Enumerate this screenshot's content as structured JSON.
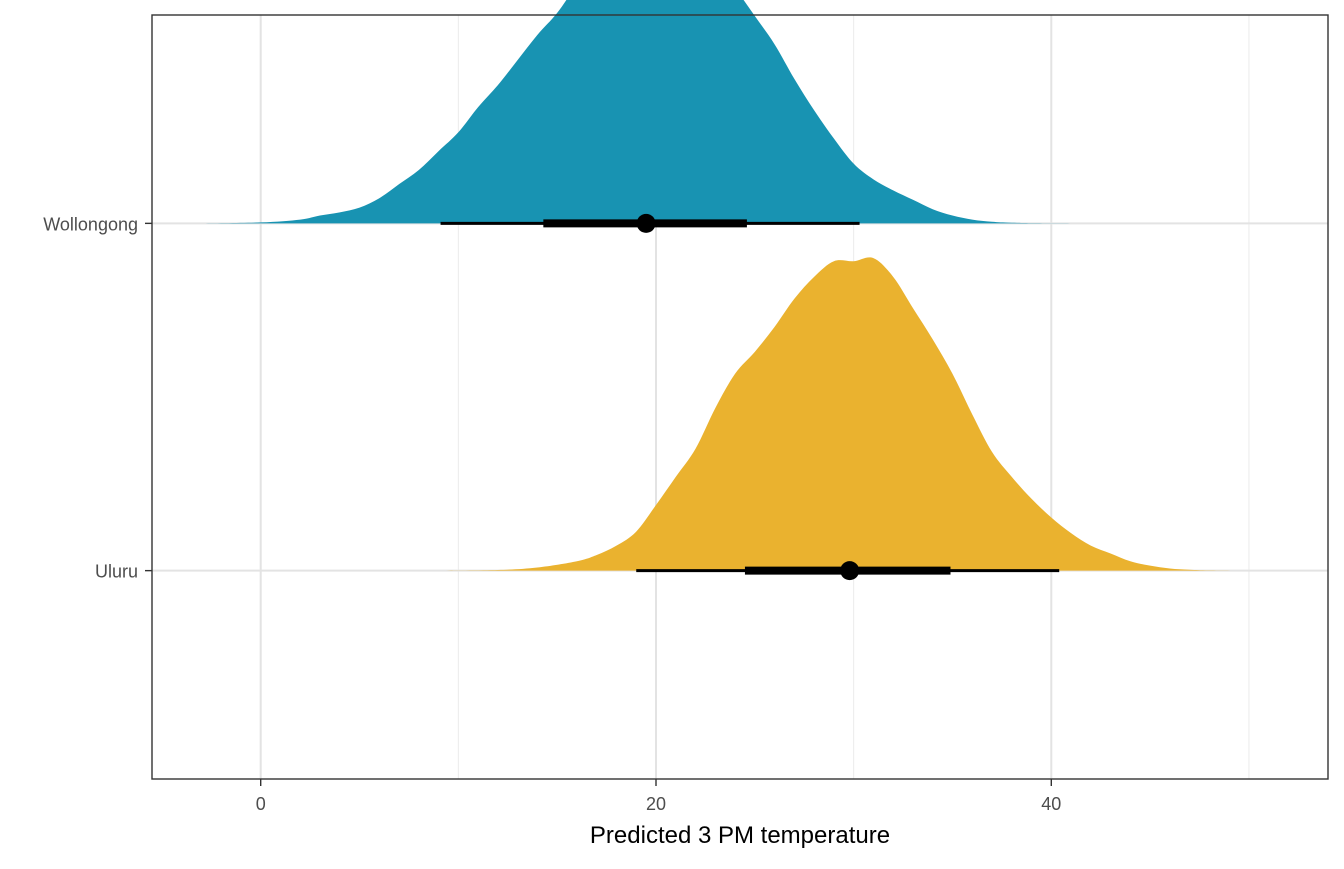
{
  "chart_data": {
    "type": "area",
    "subtype": "halfeye (density ridge with point and interval)",
    "title": "",
    "xlabel": "Predicted 3 PM temperature",
    "ylabel": "",
    "xlim": [
      -5.5,
      54
    ],
    "x_ticks": [
      0,
      20,
      40
    ],
    "x_minor_gridlines": [
      10,
      30,
      50
    ],
    "grid": true,
    "legend": "none",
    "categories": [
      "Wollongong",
      "Uluru"
    ],
    "series": [
      {
        "name": "Wollongong",
        "color": "#1893B2",
        "density": {
          "x": [
            -3,
            0,
            2,
            3,
            4,
            5,
            6,
            7,
            8,
            9,
            10,
            11,
            12,
            13,
            14,
            15,
            16,
            17,
            18,
            19,
            20,
            21,
            22,
            23,
            24,
            25,
            26,
            27,
            28,
            29,
            30,
            31,
            32,
            33,
            34,
            35,
            36,
            37,
            38,
            40,
            44
          ],
          "y": [
            0,
            0.003,
            0.012,
            0.025,
            0.035,
            0.05,
            0.08,
            0.125,
            0.17,
            0.23,
            0.29,
            0.37,
            0.44,
            0.52,
            0.6,
            0.67,
            0.76,
            0.84,
            0.93,
            0.99,
            0.995,
            0.96,
            0.91,
            0.84,
            0.75,
            0.66,
            0.57,
            0.46,
            0.36,
            0.27,
            0.19,
            0.14,
            0.105,
            0.075,
            0.045,
            0.025,
            0.012,
            0.005,
            0.002,
            0.0005,
            0
          ]
        },
        "point": 19.5,
        "interval_66": [
          14.3,
          24.6
        ],
        "interval_95": [
          9.1,
          30.3
        ]
      },
      {
        "name": "Uluru",
        "color": "#EAB22F",
        "density": {
          "x": [
            9,
            12,
            14,
            16,
            17,
            18,
            19,
            20,
            21,
            22,
            23,
            24,
            25,
            26,
            27,
            28,
            29,
            30,
            31,
            32,
            33,
            34,
            35,
            36,
            37,
            38,
            39,
            40,
            41,
            42,
            43,
            44,
            45,
            46,
            47,
            48,
            50
          ],
          "y": [
            0,
            0.002,
            0.01,
            0.03,
            0.05,
            0.08,
            0.125,
            0.21,
            0.3,
            0.39,
            0.52,
            0.63,
            0.7,
            0.78,
            0.87,
            0.94,
            0.99,
            0.99,
            1.0,
            0.94,
            0.84,
            0.74,
            0.63,
            0.5,
            0.38,
            0.3,
            0.23,
            0.17,
            0.12,
            0.08,
            0.055,
            0.03,
            0.016,
            0.007,
            0.003,
            0.001,
            0
          ]
        },
        "point": 29.8,
        "interval_66": [
          24.5,
          34.9
        ],
        "interval_95": [
          19.0,
          40.4
        ]
      }
    ]
  }
}
